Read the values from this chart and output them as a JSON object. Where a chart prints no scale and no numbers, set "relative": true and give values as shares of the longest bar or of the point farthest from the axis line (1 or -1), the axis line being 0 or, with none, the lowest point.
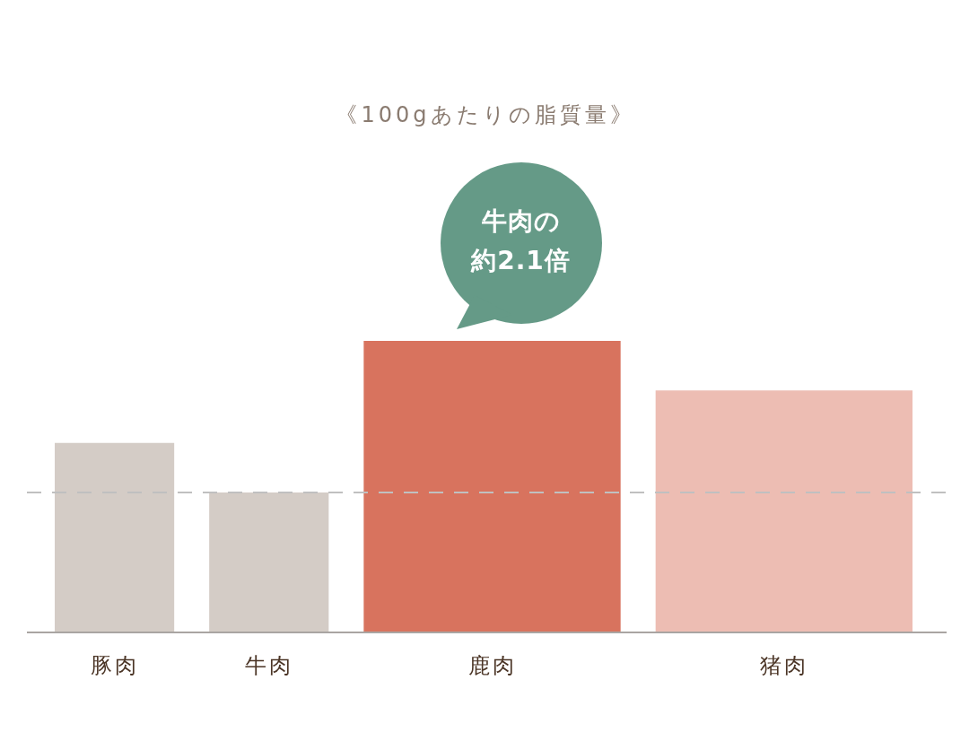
{
  "chart_data": {
    "type": "bar",
    "title": "《100gあたりの脂質量》",
    "categories": [
      "豚肉",
      "牛肉",
      "鹿肉",
      "猪肉"
    ],
    "values": [
      0.65,
      0.48,
      1,
      0.83
    ],
    "colors": [
      "#d4ccc6",
      "#d4ccc6",
      "#d8735e",
      "#edbdb3"
    ],
    "relative": true,
    "ref_lines": [
      {
        "axis": "y",
        "value": 0.48,
        "color": "#c0c0c0",
        "line_style": "dashed"
      }
    ],
    "annotations": [
      {
        "text": "牛肉の約2.1倍",
        "x": "鹿肉",
        "y": 1
      }
    ]
  }
}
